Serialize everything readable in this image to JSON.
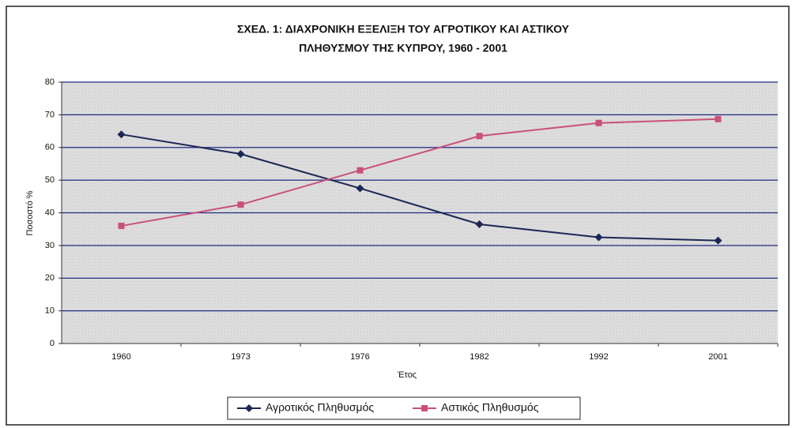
{
  "chart_data": {
    "type": "line",
    "title": [
      "ΣΧΕΔ. 1: ΔΙΑΧΡΟΝΙΚΗ ΕΞΕΛΙΞΗ ΤΟΥ ΑΓΡΟΤΙΚΟΥ ΚΑΙ ΑΣΤΙΚΟΥ",
      "ΠΛΗΘΥΣΜΟΥ ΤΗΣ ΚΥΠΡΟΥ, 1960 - 2001"
    ],
    "x_label": "Έτος",
    "y_label": "Ποσοστό %",
    "categories": [
      "1960",
      "1973",
      "1976",
      "1982",
      "1992",
      "2001"
    ],
    "series": [
      {
        "name": "Αγροτικός Πληθυσμός",
        "color": "#1b2654",
        "marker": "diamond",
        "values": [
          64,
          58,
          47.5,
          36.5,
          32.5,
          31.5
        ]
      },
      {
        "name": "Αστικός Πληθυσμός",
        "color": "#c9507c",
        "marker": "square",
        "values": [
          36,
          42.5,
          53,
          63.5,
          67.5,
          68.7
        ]
      }
    ],
    "ylim": [
      0,
      80
    ],
    "yticks": [
      0,
      10,
      20,
      30,
      40,
      50,
      60,
      70,
      80
    ],
    "grid": true,
    "legend": "bottom"
  }
}
